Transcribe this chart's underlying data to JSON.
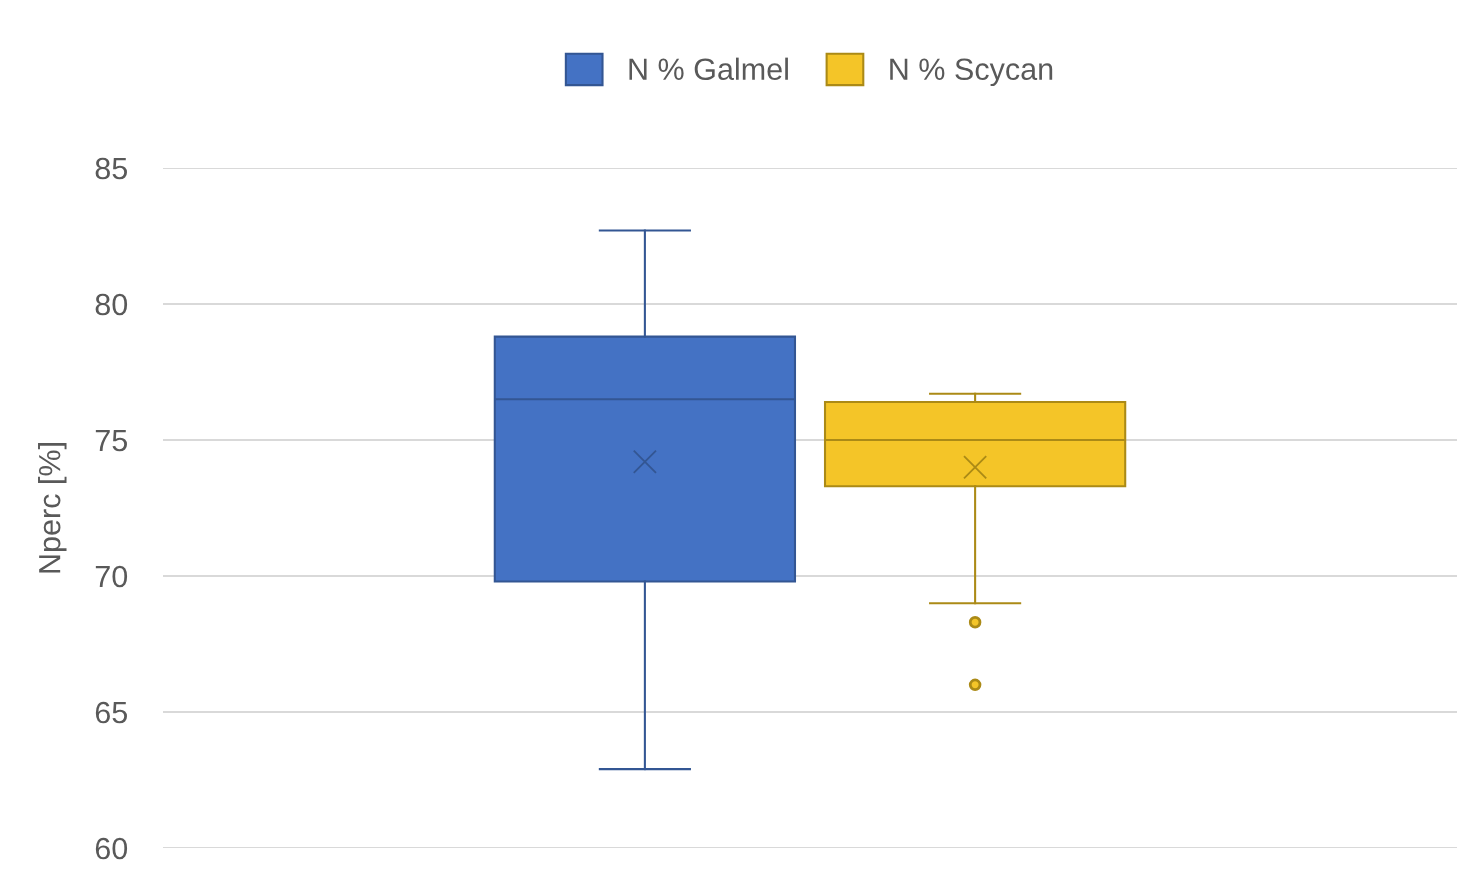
{
  "chart_data": {
    "type": "box",
    "ylabel": "Nperc [%]",
    "categories": [
      null
    ],
    "series": [
      {
        "name": "N % Galmel",
        "color": "#4472c4",
        "boxes": [
          {
            "low": 62.9,
            "q1": 69.8,
            "median": 76.5,
            "q3": 78.8,
            "high": 82.7,
            "mean": 74.2
          }
        ]
      },
      {
        "name": "N % Scycan",
        "color": "#f4c528",
        "boxes": [
          {
            "low": 69.0,
            "q1": 73.3,
            "median": 75.0,
            "q3": 76.4,
            "high": 76.7,
            "mean": 74.0,
            "outliers": [
              68.3,
              66.0
            ]
          }
        ]
      }
    ],
    "ylim": [
      60,
      85
    ],
    "yticks": [
      60,
      65,
      70,
      75,
      80,
      85
    ],
    "grid": "y",
    "legend": "top",
    "marker": "cross"
  }
}
